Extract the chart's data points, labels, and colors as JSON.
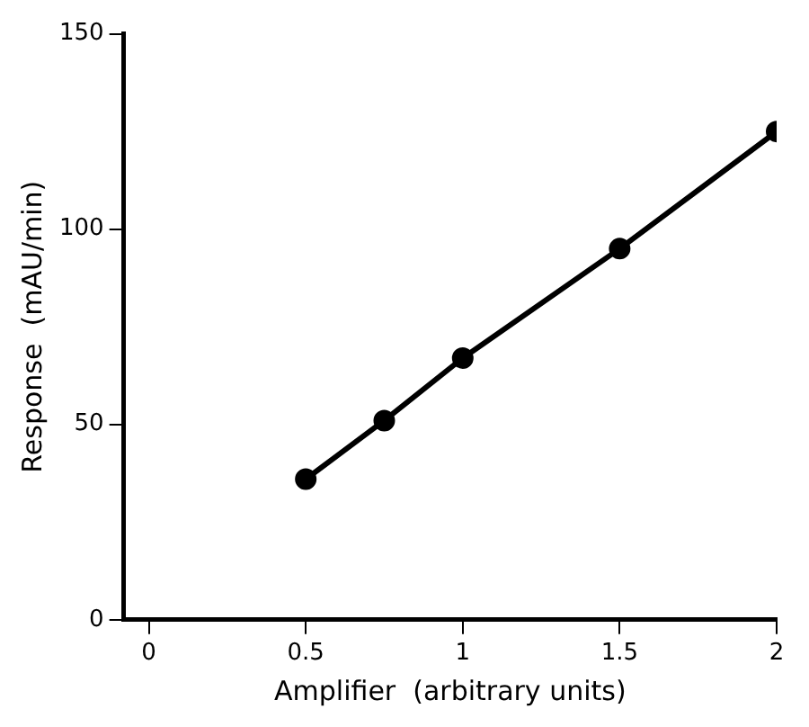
{
  "chart_data": {
    "type": "line",
    "xlabel": "Amplifier  (arbitrary units)",
    "ylabel": "Response  (mAU/min)",
    "x": [
      0.5,
      0.75,
      1,
      1.5,
      2
    ],
    "series": [
      {
        "color": "#000000",
        "values": [
          36,
          51,
          67,
          95,
          125
        ]
      }
    ],
    "xlim": [
      -0.08,
      2
    ],
    "xticks": [
      0,
      0.5,
      1,
      1.5,
      2
    ],
    "ylim": [
      0,
      150
    ],
    "yticks": [
      0,
      50,
      100,
      150
    ],
    "grid": false,
    "legend": false,
    "marker": "circle",
    "line_style": "solid"
  }
}
